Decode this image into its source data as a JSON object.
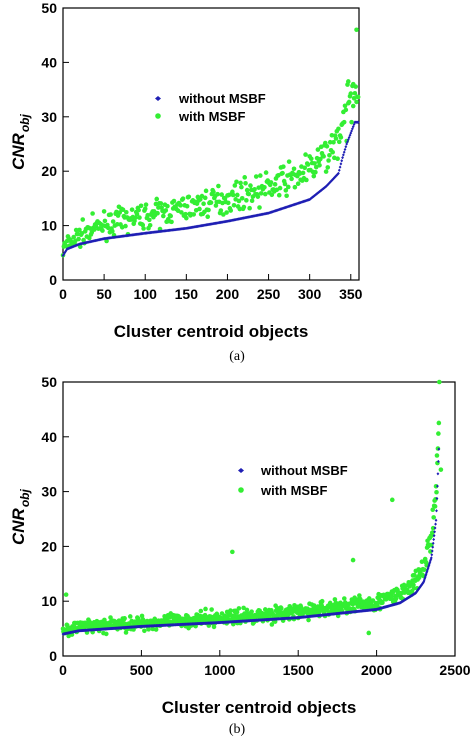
{
  "colors": {
    "without": "#1f1fb4",
    "with": "#33ee33"
  },
  "chart_data": [
    {
      "type": "scatter",
      "xlabel": "Cluster centroid objects",
      "ylabel_main": "CNR",
      "ylabel_sub": "obj",
      "caption": "(a)",
      "xlim": [
        0,
        360
      ],
      "ylim": [
        0,
        50
      ],
      "xticks": [
        0,
        50,
        100,
        150,
        200,
        250,
        300,
        350
      ],
      "yticks": [
        0,
        10,
        20,
        30,
        40,
        50
      ],
      "legend_position": "center-left",
      "grid": false,
      "series": [
        {
          "name": "without MSBF",
          "marker": "small-diamond",
          "curve": [
            [
              0,
              4.5
            ],
            [
              5,
              5.7
            ],
            [
              20,
              6.6
            ],
            [
              50,
              7.6
            ],
            [
              100,
              8.6
            ],
            [
              150,
              9.5
            ],
            [
              200,
              10.8
            ],
            [
              250,
              12.3
            ],
            [
              300,
              14.8
            ],
            [
              320,
              17.2
            ],
            [
              330,
              18.8
            ],
            [
              335,
              19.6
            ],
            [
              340,
              22.5
            ],
            [
              345,
              25
            ],
            [
              350,
              27
            ],
            [
              355,
              29
            ]
          ]
        },
        {
          "name": "with MSBF",
          "marker": "dot",
          "curve": [
            [
              0,
              5.4
            ],
            [
              5,
              6.6
            ],
            [
              20,
              8.2
            ],
            [
              50,
              10.2
            ],
            [
              100,
              11.8
            ],
            [
              150,
              13.3
            ],
            [
              200,
              15
            ],
            [
              250,
              17
            ],
            [
              300,
              20.2
            ],
            [
              320,
              23
            ],
            [
              330,
              25
            ],
            [
              340,
              28
            ],
            [
              345,
              30
            ],
            [
              350,
              33
            ],
            [
              355,
              36
            ]
          ],
          "outliers": [
            [
              347,
              36.5
            ],
            [
              353,
              36
            ],
            [
              357,
              46
            ]
          ]
        }
      ]
    },
    {
      "type": "scatter",
      "xlabel": "Cluster centroid objects",
      "ylabel_main": "CNR",
      "ylabel_sub": "obj",
      "caption": "(b)",
      "xlim": [
        0,
        2500
      ],
      "ylim": [
        0,
        50
      ],
      "xticks": [
        0,
        500,
        1000,
        1500,
        2000,
        2500
      ],
      "yticks": [
        0,
        10,
        20,
        30,
        40,
        50
      ],
      "legend_position": "center-right",
      "grid": false,
      "series": [
        {
          "name": "without MSBF",
          "marker": "small-diamond",
          "curve": [
            [
              0,
              4
            ],
            [
              100,
              4.6
            ],
            [
              500,
              5.4
            ],
            [
              1000,
              6.1
            ],
            [
              1500,
              7
            ],
            [
              2000,
              8.5
            ],
            [
              2150,
              9.7
            ],
            [
              2250,
              11.5
            ],
            [
              2300,
              13.5
            ],
            [
              2350,
              18
            ],
            [
              2380,
              25
            ],
            [
              2400,
              40
            ]
          ]
        },
        {
          "name": "with MSBF",
          "marker": "dot",
          "curve": [
            [
              0,
              4.6
            ],
            [
              100,
              5.2
            ],
            [
              500,
              6
            ],
            [
              1000,
              6.9
            ],
            [
              1500,
              8
            ],
            [
              2000,
              9.8
            ],
            [
              2150,
              11.3
            ],
            [
              2250,
              13.5
            ],
            [
              2300,
              16
            ],
            [
              2350,
              22
            ],
            [
              2380,
              30
            ],
            [
              2400,
              45
            ]
          ],
          "outliers": [
            [
              1080,
              19
            ],
            [
              2100,
              28.5
            ],
            [
              2400,
              50
            ],
            [
              1850,
              17.5
            ],
            [
              1950,
              4.2
            ],
            [
              20,
              11.2
            ],
            [
              2410,
              34
            ]
          ]
        }
      ]
    }
  ]
}
